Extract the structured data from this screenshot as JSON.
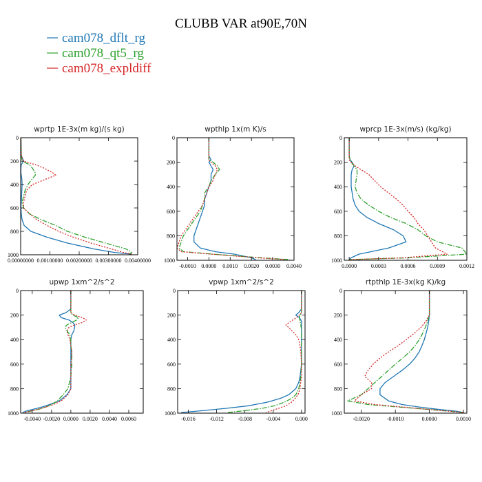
{
  "figure": {
    "title": "CLUBB VAR at90E,70N",
    "legend": [
      {
        "label": "cam078_dflt_rg",
        "color": "#1f77b4",
        "dash": "solid"
      },
      {
        "label": "cam078_qt5_rg",
        "color": "#2ca02c",
        "dash": "dashdot"
      },
      {
        "label": "cam078_expldiff",
        "color": "#d62728",
        "dash": "dot"
      }
    ]
  },
  "chart_data": [
    {
      "type": "line",
      "title": "wprtp  1E-3x(m kg)/(s kg)",
      "xlim": [
        0.0,
        0.004
      ],
      "ylim": [
        0,
        1000
      ],
      "y_inverted": true,
      "xticks": [
        0.0,
        0.001,
        0.002,
        0.003,
        0.004
      ],
      "xtick_labels": [
        "0.00000000",
        "0.00100000",
        "0.00200000",
        "0.00300000",
        "0.00400000"
      ],
      "yticks": [
        0,
        200,
        400,
        600,
        800,
        1000
      ],
      "y": [
        0,
        150,
        200,
        230,
        260,
        300,
        320,
        350,
        400,
        450,
        500,
        550,
        600,
        650,
        700,
        750,
        800,
        850,
        900,
        950,
        980,
        995
      ],
      "series": [
        {
          "name": "cam078_dflt_rg",
          "x": [
            1e-05,
            2e-05,
            0.0001,
            2e-05,
            1e-05,
            1e-05,
            2e-05,
            4e-05,
            5e-05,
            4e-05,
            3e-05,
            2e-05,
            1e-05,
            2e-05,
            5e-05,
            0.00012,
            0.00035,
            0.0009,
            0.0016,
            0.0025,
            0.0032,
            0.0038
          ]
        },
        {
          "name": "cam078_qt5_rg",
          "x": [
            1e-05,
            2e-05,
            5e-05,
            0.0003,
            0.0004,
            0.0005,
            0.0005,
            0.0004,
            0.00025,
            0.00015,
            0.0001,
            5e-05,
            0.0001,
            0.0003,
            0.0007,
            0.0012,
            0.0016,
            0.0022,
            0.0029,
            0.0036,
            0.0038,
            0.0037
          ]
        },
        {
          "name": "cam078_expldiff",
          "x": [
            1e-05,
            2e-05,
            0.0001,
            0.0005,
            0.0008,
            0.0011,
            0.0012,
            0.0009,
            0.0004,
            0.0002,
            0.00015,
            0.0001,
            0.0001,
            0.0003,
            0.00055,
            0.0009,
            0.0013,
            0.0018,
            0.0024,
            0.0031,
            0.0035,
            0.0038
          ]
        }
      ]
    },
    {
      "type": "line",
      "title": "wpthlp  1x(m K)/s",
      "xlim": [
        -0.0015,
        0.004
      ],
      "ylim": [
        0,
        1000
      ],
      "y_inverted": true,
      "xticks": [
        -0.001,
        0.0,
        0.001,
        0.002,
        0.003,
        0.004
      ],
      "xtick_labels": [
        "-0.0010",
        "0.0000",
        "0.0010",
        "0.0020",
        "0.0030",
        "0.0040"
      ],
      "yticks": [
        0,
        200,
        400,
        600,
        800,
        1000
      ],
      "y": [
        0,
        150,
        180,
        200,
        230,
        260,
        300,
        350,
        400,
        450,
        500,
        550,
        600,
        650,
        700,
        750,
        800,
        850,
        900,
        930,
        950,
        980,
        995
      ],
      "series": [
        {
          "name": "cam078_dflt_rg",
          "x": [
            0.0,
            0.0,
            0.0001,
            0.0,
            0.0001,
            0.0002,
            0.0001,
            0.0001,
            0.0,
            -0.0001,
            -0.0002,
            -0.0002,
            -0.0003,
            -0.0004,
            -0.0005,
            -0.0006,
            -0.0007,
            -0.0007,
            -0.0004,
            0.0003,
            0.0012,
            0.002,
            0.0022
          ]
        },
        {
          "name": "cam078_qt5_rg",
          "x": [
            0.0,
            0.0,
            0.0,
            0.0002,
            0.0004,
            0.0005,
            0.0003,
            0.0001,
            0.0,
            -0.0002,
            -0.0002,
            -0.0003,
            -0.0004,
            -0.0006,
            -0.0008,
            -0.001,
            -0.0012,
            -0.0013,
            -0.0014,
            -0.0012,
            0.0002,
            0.0025,
            0.0038
          ]
        },
        {
          "name": "cam078_expldiff",
          "x": [
            0.0,
            0.0,
            0.0,
            0.0001,
            0.0003,
            0.0004,
            0.0003,
            0.0002,
            0.0,
            -0.0001,
            -0.0002,
            -0.0003,
            -0.0005,
            -0.0007,
            -0.0009,
            -0.0011,
            -0.0013,
            -0.0014,
            -0.0015,
            -0.0013,
            0.0001,
            0.0023,
            0.0036
          ]
        }
      ]
    },
    {
      "type": "line",
      "title": "wprcp  1E-3x(m/s) (kg/kg)",
      "xlim": [
        -5e-05,
        0.0012
      ],
      "ylim": [
        0,
        1000
      ],
      "y_inverted": true,
      "xticks": [
        0.0,
        0.0003,
        0.0006,
        0.0009,
        0.0012
      ],
      "xtick_labels": [
        "0.0000",
        "0.0003",
        "0.0006",
        "0.0009",
        "0.0012"
      ],
      "yticks": [
        0,
        200,
        400,
        600,
        800,
        1000
      ],
      "y": [
        0,
        150,
        180,
        200,
        230,
        260,
        300,
        350,
        400,
        450,
        500,
        550,
        600,
        650,
        700,
        750,
        800,
        850,
        900,
        950,
        980,
        995
      ],
      "series": [
        {
          "name": "cam078_dflt_rg",
          "x": [
            0.0,
            0.0,
            1e-05,
            3e-05,
            5e-05,
            3e-05,
            2e-05,
            2e-05,
            2e-05,
            3e-05,
            4e-05,
            6e-05,
            0.0001,
            0.00018,
            0.0003,
            0.00045,
            0.00055,
            0.00058,
            0.0004,
            0.0001,
            2e-05,
            0.0
          ]
        },
        {
          "name": "cam078_qt5_rg",
          "x": [
            0.0,
            0.0,
            1e-05,
            2e-05,
            5e-05,
            8e-05,
            8e-05,
            7e-05,
            6e-05,
            8e-05,
            0.00012,
            0.0002,
            0.0003,
            0.00042,
            0.00058,
            0.0007,
            0.00078,
            0.0009,
            0.00115,
            0.0012,
            0.0006,
            0.0
          ]
        },
        {
          "name": "cam078_expldiff",
          "x": [
            0.0,
            0.0,
            0.0,
            2e-05,
            6e-05,
            0.00012,
            0.0002,
            0.00026,
            0.00032,
            0.0004,
            0.00048,
            0.00055,
            0.0006,
            0.00066,
            0.0007,
            0.00076,
            0.0008,
            0.00084,
            0.00088,
            0.001,
            0.00055,
            0.0
          ]
        }
      ]
    },
    {
      "type": "line",
      "title": "upwp  1xm^2/s^2",
      "xlim": [
        -0.0052,
        0.0075
      ],
      "ylim": [
        0,
        1000
      ],
      "y_inverted": true,
      "xticks": [
        -0.004,
        -0.002,
        0.0,
        0.002,
        0.004,
        0.006
      ],
      "xtick_labels": [
        "-0.0040",
        "-0.0020",
        "0.0000",
        "0.0020",
        "0.0040",
        "0.0060"
      ],
      "yticks": [
        0,
        200,
        400,
        600,
        800,
        1000
      ],
      "y": [
        0,
        150,
        180,
        200,
        220,
        240,
        260,
        280,
        300,
        330,
        360,
        400,
        450,
        500,
        600,
        700,
        800,
        850,
        900,
        930,
        950,
        970,
        985,
        995
      ],
      "series": [
        {
          "name": "cam078_dflt_rg",
          "x": [
            0.0,
            0.0,
            -0.0005,
            -0.0012,
            -0.001,
            -0.0002,
            0.0002,
            0.0004,
            0.0004,
            0.0003,
            0.0001,
            0.0,
            0.0,
            0.0,
            0.0,
            0.0,
            0.0,
            -0.0004,
            -0.0012,
            -0.0022,
            -0.003,
            -0.004,
            -0.0047,
            -0.005
          ]
        },
        {
          "name": "cam078_qt5_rg",
          "x": [
            0.0,
            0.0,
            0.0,
            0.0002,
            0.0008,
            0.0006,
            0.0001,
            -0.0004,
            -0.0006,
            -0.0004,
            -0.0001,
            0.0,
            0.0,
            0.0001,
            0.0001,
            0.0,
            -0.0003,
            -0.0008,
            -0.0014,
            -0.002,
            -0.0026,
            -0.0034,
            -0.0042,
            -0.0048
          ]
        },
        {
          "name": "cam078_expldiff",
          "x": [
            0.0,
            0.0,
            0.0,
            0.0004,
            0.0012,
            0.0016,
            0.0012,
            0.0004,
            -0.0002,
            -0.0004,
            -0.0003,
            -0.0001,
            0.0,
            0.0001,
            0.0,
            0.0,
            0.0,
            -0.0003,
            -0.001,
            -0.0018,
            -0.0026,
            -0.0035,
            -0.0043,
            -0.0049
          ]
        }
      ]
    },
    {
      "type": "line",
      "title": "vpwp  1xm^2/s^2",
      "xlim": [
        -0.0175,
        0.0005
      ],
      "ylim": [
        0,
        1000
      ],
      "y_inverted": true,
      "xticks": [
        -0.016,
        -0.012,
        -0.008,
        -0.004,
        0.0
      ],
      "xtick_labels": [
        "-0.016",
        "-0.012",
        "-0.008",
        "-0.004",
        "0.000"
      ],
      "yticks": [
        0,
        200,
        400,
        600,
        800,
        1000
      ],
      "y": [
        0,
        150,
        180,
        200,
        220,
        250,
        280,
        320,
        360,
        400,
        450,
        500,
        600,
        700,
        750,
        800,
        850,
        880,
        910,
        940,
        960,
        980,
        995
      ],
      "series": [
        {
          "name": "cam078_dflt_rg",
          "x": [
            0.0,
            0.0,
            -0.0004,
            -0.0008,
            -0.0003,
            0.0,
            0.0,
            0.0,
            0.0,
            0.0,
            0.0,
            0.0,
            0.0,
            -0.0002,
            -0.0004,
            -0.0008,
            -0.0018,
            -0.003,
            -0.0048,
            -0.0075,
            -0.0105,
            -0.014,
            -0.017
          ]
        },
        {
          "name": "cam078_qt5_rg",
          "x": [
            0.0,
            0.0,
            0.0,
            -0.0002,
            -0.0003,
            -0.0002,
            -0.0001,
            0.0,
            0.0,
            0.0,
            0.0,
            0.0,
            0.0,
            -0.0001,
            -0.0002,
            -0.0004,
            -0.0008,
            -0.0014,
            -0.0024,
            -0.0038,
            -0.0055,
            -0.008,
            -0.0105
          ]
        },
        {
          "name": "cam078_expldiff",
          "x": [
            0.0,
            0.0,
            0.0,
            -0.0003,
            -0.0007,
            -0.0015,
            -0.0022,
            -0.0015,
            -0.0008,
            -0.0004,
            -0.0002,
            -0.0001,
            0.0,
            0.0,
            -0.0001,
            -0.0002,
            -0.0005,
            -0.0009,
            -0.0014,
            -0.0022,
            -0.0032,
            -0.0042,
            -0.005
          ]
        }
      ]
    },
    {
      "type": "line",
      "title": "rtpthlp  1E-3x(kg K)/kg",
      "xlim": [
        -0.0025,
        0.0011
      ],
      "ylim": [
        0,
        1000
      ],
      "y_inverted": true,
      "xticks": [
        -0.002,
        -0.001,
        0.0,
        0.001
      ],
      "xtick_labels": [
        "-0.0020",
        "-0.0010",
        "0.0000",
        "0.0010"
      ],
      "yticks": [
        0,
        200,
        400,
        600,
        800,
        1000
      ],
      "y": [
        0,
        100,
        200,
        250,
        300,
        350,
        400,
        450,
        500,
        550,
        600,
        650,
        700,
        750,
        800,
        850,
        900,
        930,
        950,
        970,
        985,
        995
      ],
      "series": [
        {
          "name": "cam078_dflt_rg",
          "x": [
            0.0,
            0.0,
            0.0,
            -2e-05,
            -5e-05,
            -0.0001,
            -0.00015,
            -0.00022,
            -0.0003,
            -0.00042,
            -0.00058,
            -0.0008,
            -0.00105,
            -0.0013,
            -0.00145,
            -0.00145,
            -0.0012,
            -0.0008,
            -0.0003,
            0.0003,
            0.0008,
            0.001
          ]
        },
        {
          "name": "cam078_qt5_rg",
          "x": [
            0.0,
            0.0,
            0.0,
            -5e-05,
            -0.00012,
            -0.0002,
            -0.0003,
            -0.00042,
            -0.00058,
            -0.00078,
            -0.001,
            -0.0012,
            -0.0014,
            -0.0016,
            -0.0018,
            -0.002,
            -0.0024,
            -0.0018,
            -0.0009,
            0.0,
            0.0006,
            0.001
          ]
        },
        {
          "name": "cam078_expldiff",
          "x": [
            0.0,
            0.0,
            0.0,
            -0.0001,
            -0.00025,
            -0.00045,
            -0.00068,
            -0.00092,
            -0.0012,
            -0.00145,
            -0.00165,
            -0.0018,
            -0.0019,
            -0.0017,
            -0.0017,
            -0.002,
            -0.0022,
            -0.0016,
            -0.0008,
            0.0,
            0.0006,
            0.001
          ]
        }
      ]
    }
  ]
}
